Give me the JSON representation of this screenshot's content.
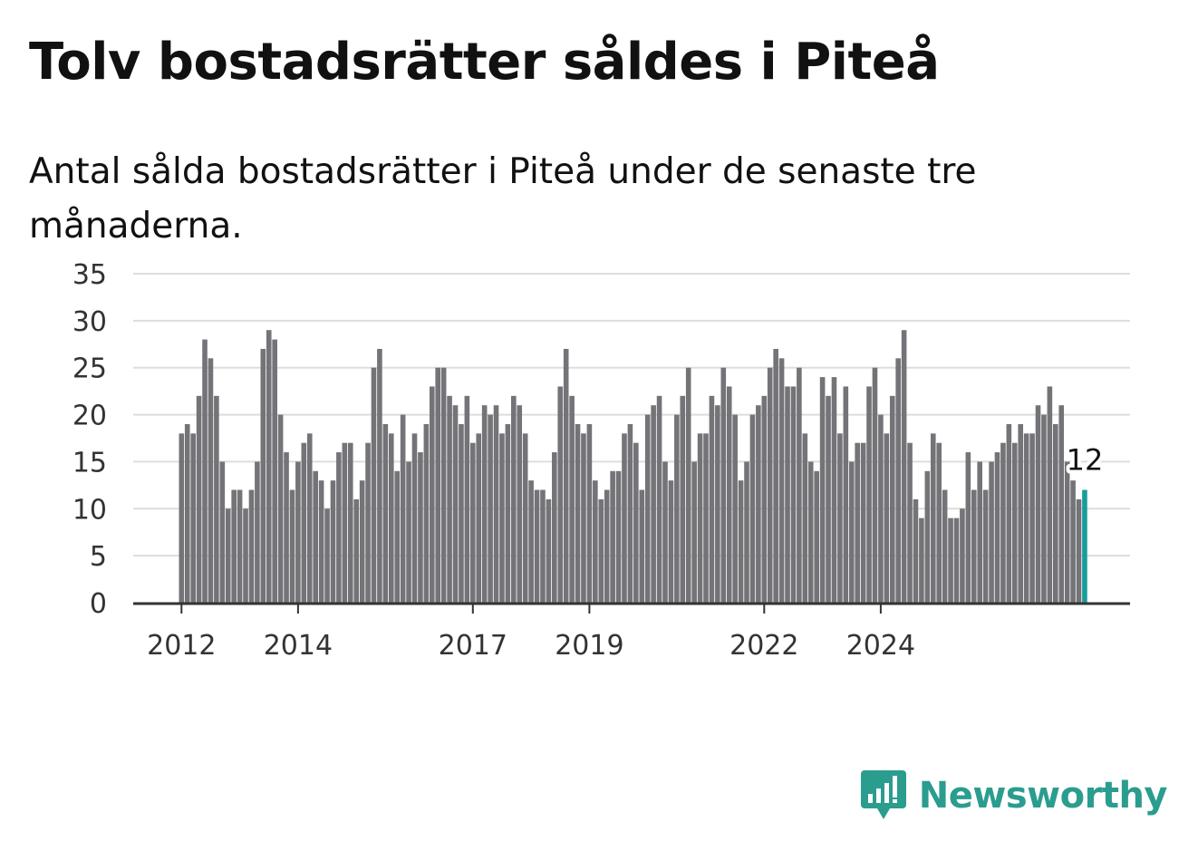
{
  "header": {
    "title": "Tolv bostadsrätter såldes i Piteå",
    "subtitle": "Antal sålda bostadsrätter i Piteå under de senaste tre månaderna."
  },
  "brand": {
    "name": "Newsworthy",
    "icon": "newsworthy-logo-icon",
    "color": "#2a9d8f"
  },
  "colors": {
    "bar": "#737378",
    "highlight": "#1a9c98",
    "grid": "#dddddd",
    "axis": "#333333"
  },
  "chart_data": {
    "type": "bar",
    "title": "Tolv bostadsrätter såldes i Piteå",
    "subtitle": "Antal sålda bostadsrätter i Piteå under de senaste tre månaderna.",
    "xlabel": "",
    "ylabel": "",
    "ylim": [
      0,
      35
    ],
    "yticks": [
      0,
      5,
      10,
      15,
      20,
      25,
      30,
      35
    ],
    "xticks": [
      {
        "label": "2012",
        "index": 0
      },
      {
        "label": "2014",
        "index": 20
      },
      {
        "label": "2017",
        "index": 50
      },
      {
        "label": "2019",
        "index": 70
      },
      {
        "label": "2022",
        "index": 100
      },
      {
        "label": "2024",
        "index": 120
      }
    ],
    "grid": true,
    "legend": "none",
    "highlight_last": true,
    "last_label": "12",
    "values": [
      18,
      19,
      18,
      22,
      28,
      26,
      22,
      15,
      10,
      12,
      12,
      10,
      12,
      15,
      27,
      29,
      28,
      20,
      16,
      12,
      15,
      17,
      18,
      14,
      13,
      10,
      13,
      16,
      17,
      17,
      11,
      13,
      17,
      25,
      27,
      19,
      18,
      14,
      20,
      15,
      18,
      16,
      19,
      23,
      25,
      25,
      22,
      21,
      19,
      22,
      17,
      18,
      21,
      20,
      21,
      18,
      19,
      22,
      21,
      18,
      13,
      12,
      12,
      11,
      16,
      23,
      27,
      22,
      19,
      18,
      19,
      13,
      11,
      12,
      14,
      14,
      18,
      19,
      17,
      12,
      20,
      21,
      22,
      15,
      13,
      20,
      22,
      25,
      15,
      18,
      18,
      22,
      21,
      25,
      23,
      20,
      13,
      15,
      20,
      21,
      22,
      25,
      27,
      26,
      23,
      23,
      25,
      18,
      15,
      14,
      24,
      22,
      24,
      18,
      23,
      15,
      17,
      17,
      23,
      25,
      20,
      18,
      22,
      26,
      29,
      17,
      11,
      9,
      14,
      18,
      17,
      12,
      9,
      9,
      10,
      16,
      12,
      15,
      12,
      15,
      16,
      17,
      19,
      17,
      19,
      18,
      18,
      21,
      20,
      23,
      19,
      21,
      15,
      13,
      11,
      12
    ]
  }
}
